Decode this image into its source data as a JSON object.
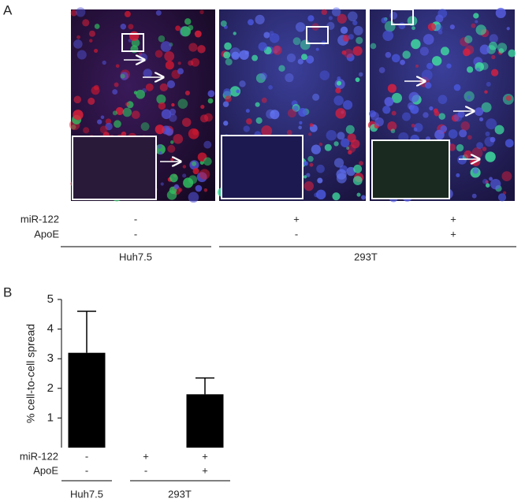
{
  "panel_a": {
    "label": "A",
    "rows": [
      {
        "name": "miR-122",
        "values": [
          "-",
          "+",
          "+"
        ]
      },
      {
        "name": "ApoE",
        "values": [
          "-",
          "-",
          "+"
        ]
      }
    ],
    "groups": [
      "Huh7.5",
      "293T"
    ]
  },
  "chart_data": {
    "type": "bar",
    "label": "B",
    "ylabel": "% cell-to-cell spread",
    "categories": [
      null,
      null,
      null
    ],
    "values": [
      3.2,
      0,
      1.8
    ],
    "errors": [
      1.4,
      null,
      0.55
    ],
    "color": "#000000",
    "ylim": [
      0,
      5
    ],
    "yticks": [
      1,
      2,
      3,
      4,
      5
    ],
    "conditions": [
      {
        "name": "miR-122",
        "values": [
          "-",
          "+",
          "+"
        ]
      },
      {
        "name": "ApoE",
        "values": [
          "-",
          "-",
          "+"
        ]
      }
    ],
    "groups": [
      "Huh7.5",
      "293T"
    ]
  }
}
